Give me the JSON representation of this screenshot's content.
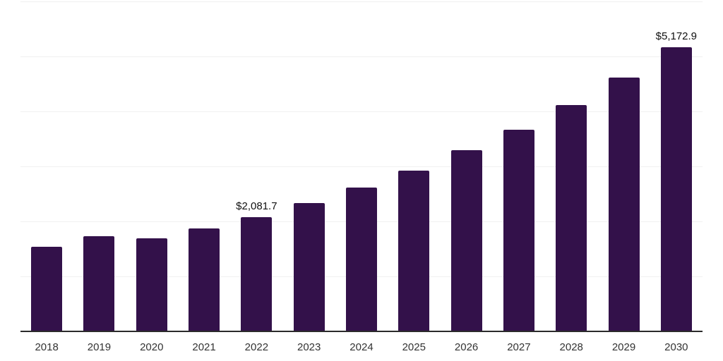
{
  "chart_data": {
    "type": "bar",
    "title": "",
    "xlabel": "",
    "ylabel": "",
    "categories": [
      "2018",
      "2019",
      "2020",
      "2021",
      "2022",
      "2023",
      "2024",
      "2025",
      "2026",
      "2027",
      "2028",
      "2029",
      "2030"
    ],
    "values": [
      1540,
      1730,
      1690,
      1870,
      2081.7,
      2330,
      2615,
      2920,
      3290,
      3665,
      4110,
      4610,
      5172.9
    ],
    "data_labels": {
      "2022": "$2,081.7",
      "2030": "$5,172.9"
    },
    "ylim": [
      0,
      6000
    ],
    "gridline_step": 1000,
    "grid": true,
    "legend": false,
    "colors": {
      "bar": "#33114a",
      "gridline": "#f0f0f0",
      "axis_line": "#2b2b2b",
      "tick_label": "#333333",
      "data_label": "#111111"
    }
  }
}
